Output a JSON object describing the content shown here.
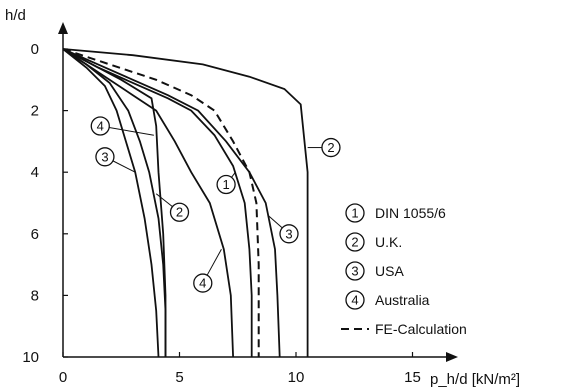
{
  "chart_data": {
    "type": "line",
    "xlabel": "p_h/d [kN/m²]",
    "ylabel": "h/d",
    "xlim": [
      0,
      17
    ],
    "ylim": [
      0,
      10
    ],
    "y_axis_inverted": true,
    "x_ticks": [
      0,
      5,
      10,
      15
    ],
    "y_ticks": [
      0,
      2,
      4,
      6,
      8,
      10
    ],
    "grid": false,
    "legend_position": "right",
    "series": [
      {
        "name": "DIN 1055/6",
        "marker": "1",
        "style": "solid",
        "points": [
          [
            0,
            0
          ],
          [
            1.5,
            0.6
          ],
          [
            3,
            1.1
          ],
          [
            4.5,
            1.6
          ],
          [
            5.5,
            2
          ],
          [
            6.5,
            2.8
          ],
          [
            7.3,
            3.8
          ],
          [
            7.8,
            5
          ],
          [
            8,
            6.5
          ],
          [
            8.1,
            8
          ],
          [
            8.1,
            10
          ]
        ]
      },
      {
        "name": "U.K.",
        "marker": "2",
        "style": "solid",
        "points": [
          [
            0,
            0
          ],
          [
            3,
            0.2
          ],
          [
            6,
            0.5
          ],
          [
            8,
            0.9
          ],
          [
            9.5,
            1.3
          ],
          [
            10.2,
            1.8
          ],
          [
            10.5,
            4
          ],
          [
            10.5,
            10
          ]
        ]
      },
      {
        "name": "USA",
        "marker": "3",
        "style": "solid",
        "points": [
          [
            0,
            0
          ],
          [
            1.5,
            0.5
          ],
          [
            3,
            1
          ],
          [
            4.5,
            1.5
          ],
          [
            5.8,
            2
          ],
          [
            7,
            3
          ],
          [
            8,
            4
          ],
          [
            8.7,
            5
          ],
          [
            9.1,
            6.5
          ],
          [
            9.2,
            8
          ],
          [
            9.3,
            10
          ]
        ]
      },
      {
        "name": "Australia",
        "marker": "4",
        "style": "solid",
        "points": [
          [
            0,
            0
          ],
          [
            1,
            0.5
          ],
          [
            2,
            1
          ],
          [
            3,
            1.5
          ],
          [
            4,
            2
          ],
          [
            4.8,
            3
          ],
          [
            5.5,
            4
          ],
          [
            6.3,
            5
          ],
          [
            6.9,
            6.5
          ],
          [
            7.2,
            8
          ],
          [
            7.3,
            10
          ]
        ]
      },
      {
        "name": "FE-Calculation",
        "marker": "",
        "style": "dashed",
        "points": [
          [
            0,
            0
          ],
          [
            2,
            0.5
          ],
          [
            4,
            1
          ],
          [
            5.5,
            1.5
          ],
          [
            6.5,
            2
          ],
          [
            7.3,
            3
          ],
          [
            8,
            4
          ],
          [
            8.3,
            5
          ],
          [
            8.4,
            7
          ],
          [
            8.4,
            10
          ]
        ]
      },
      {
        "name": "",
        "marker": "2",
        "style": "solid",
        "points": [
          [
            0,
            0
          ],
          [
            1,
            0.5
          ],
          [
            2,
            1.1
          ],
          [
            2.8,
            2
          ],
          [
            3.3,
            3
          ],
          [
            3.7,
            4
          ],
          [
            4.1,
            5.5
          ],
          [
            4.3,
            7
          ],
          [
            4.4,
            8.5
          ],
          [
            4.4,
            10
          ]
        ]
      },
      {
        "name": "",
        "marker": "3",
        "style": "solid",
        "points": [
          [
            0,
            0
          ],
          [
            1,
            0.6
          ],
          [
            1.8,
            1.2
          ],
          [
            2.3,
            2
          ],
          [
            2.7,
            3
          ],
          [
            3.1,
            4
          ],
          [
            3.5,
            5.5
          ],
          [
            3.8,
            7
          ],
          [
            4,
            8.5
          ],
          [
            4.1,
            10
          ]
        ]
      },
      {
        "name": "",
        "marker": "4",
        "style": "solid",
        "points": [
          [
            0,
            0
          ],
          [
            2.5,
            1
          ],
          [
            3.8,
            1.6
          ],
          [
            4,
            2.5
          ],
          [
            4.1,
            4
          ],
          [
            4.3,
            6
          ],
          [
            4.4,
            8
          ],
          [
            4.4,
            10
          ]
        ]
      }
    ],
    "markers": [
      {
        "id": "2",
        "text": "2",
        "at": [
          11.5,
          3.2
        ],
        "curve_at": [
          10.5,
          3.2
        ]
      },
      {
        "id": "1",
        "text": "1",
        "at": [
          7,
          4.4
        ],
        "curve_at": [
          7.4,
          4.0
        ]
      },
      {
        "id": "3",
        "text": "3",
        "at": [
          9.7,
          6.0
        ],
        "curve_at": [
          8.8,
          5.4
        ]
      },
      {
        "id": "4",
        "text": "4",
        "at": [
          6,
          7.6
        ],
        "curve_at": [
          6.8,
          6.5
        ]
      },
      {
        "id": "2",
        "text": "2",
        "at": [
          5,
          5.3
        ],
        "curve_at": [
          4.0,
          4.7
        ]
      },
      {
        "id": "3",
        "text": "3",
        "at": [
          1.8,
          3.5
        ],
        "curve_at": [
          3.1,
          4.0
        ]
      },
      {
        "id": "4",
        "text": "4",
        "at": [
          1.6,
          2.5
        ],
        "curve_at": [
          3.9,
          2.8
        ]
      }
    ],
    "legend": [
      {
        "marker": "1",
        "label": "DIN 1055/6",
        "style": "circle"
      },
      {
        "marker": "2",
        "label": "U.K.",
        "style": "circle"
      },
      {
        "marker": "3",
        "label": "USA",
        "style": "circle"
      },
      {
        "marker": "4",
        "label": "Australia",
        "style": "circle"
      },
      {
        "marker": "",
        "label": "FE-Calculation",
        "style": "dashed"
      }
    ]
  }
}
